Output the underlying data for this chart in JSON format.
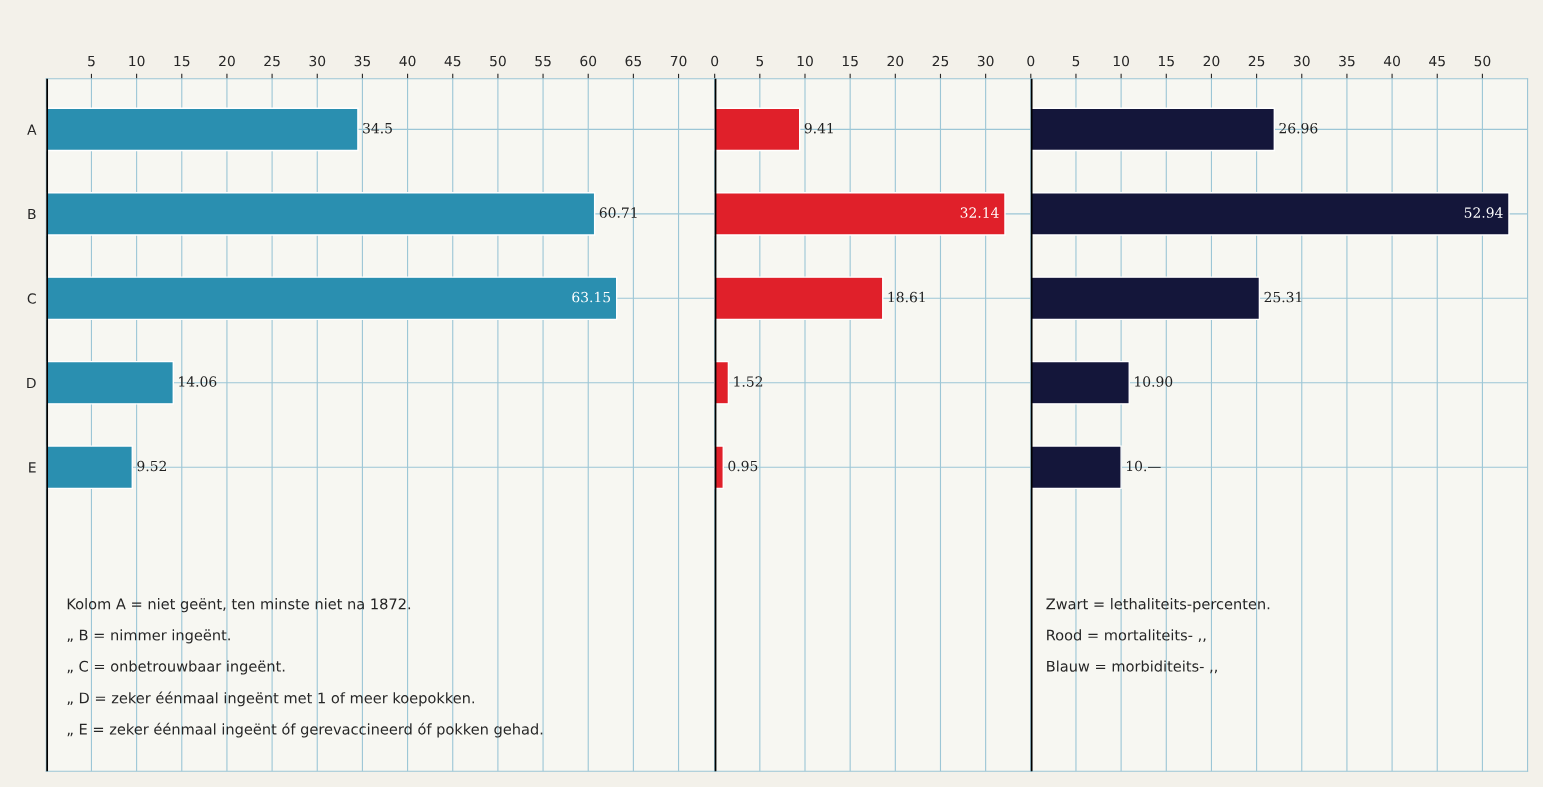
{
  "chart_data": [
    {
      "type": "bar",
      "orientation": "horizontal",
      "categories": [
        "A",
        "B",
        "C",
        "D",
        "E"
      ],
      "values": [
        34.5,
        60.71,
        63.15,
        14.06,
        9.52
      ],
      "value_labels": [
        "34.5",
        "60.71",
        "63.15",
        "14.06",
        "9.52"
      ],
      "color": "#2a8fb0",
      "xlim": [
        0,
        74
      ],
      "xticks": [
        5,
        10,
        15,
        20,
        25,
        30,
        35,
        40,
        45,
        50,
        55,
        60,
        65,
        70
      ],
      "grid": true,
      "annotations": [
        "Kolom A = niet geënt, ten minste niet na 1872.",
        "„ B = nimmer ingeënt.",
        "„ C = onbetrouwbaar ingeënt.",
        "„ D = zeker éénmaal ingeënt met 1 of meer koepokken.",
        "„ E = zeker éénmaal ingeënt óf gerevaccineerd óf pokken gehad."
      ]
    },
    {
      "type": "bar",
      "orientation": "horizontal",
      "values": [
        9.41,
        32.14,
        18.61,
        1.52,
        0.95
      ],
      "value_labels": [
        "9.41",
        "32.14",
        "18.61",
        "1.52",
        "0.95"
      ],
      "color": "#e0202a",
      "xlim": [
        0,
        35
      ],
      "xticks": [
        0,
        5,
        10,
        15,
        20,
        25,
        30
      ],
      "grid": true
    },
    {
      "type": "bar",
      "orientation": "horizontal",
      "values": [
        26.96,
        52.94,
        25.31,
        10.9,
        10
      ],
      "value_labels": [
        "26.96",
        "52.94",
        "25.31",
        "10.90",
        "10.—"
      ],
      "color": "#14163a",
      "xlim": [
        0,
        55
      ],
      "xticks": [
        0,
        5,
        10,
        15,
        20,
        25,
        30,
        35,
        40,
        45,
        50
      ],
      "grid": true,
      "annotations": [
        "Zwart = lethaliteits-percenten.",
        "Rood = mortaliteits- ,,",
        "Blauw = morbiditeits- ,,"
      ]
    }
  ]
}
